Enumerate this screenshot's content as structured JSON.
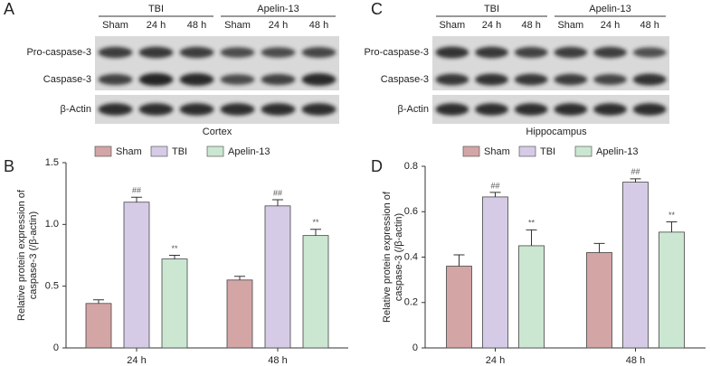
{
  "blots": [
    {
      "panel_label": "A",
      "groups": [
        "TBI",
        "Apelin-13"
      ],
      "lanes": [
        "Sham",
        "24 h",
        "48 h",
        "Sham",
        "24 h",
        "48 h"
      ],
      "rows": [
        "Pro-caspase-3",
        "Caspase-3",
        "β-Actin"
      ],
      "caption": "Cortex"
    },
    {
      "panel_label": "C",
      "groups": [
        "TBI",
        "Apelin-13"
      ],
      "lanes": [
        "Sham",
        "24 h",
        "48 h",
        "Sham",
        "24 h",
        "48 h"
      ],
      "rows": [
        "Pro-caspase-3",
        "Caspase-3",
        "β-Actin"
      ],
      "caption": "Hippocampus"
    }
  ],
  "chart_data": [
    {
      "type": "bar",
      "panel_label": "B",
      "ylabel": [
        "Relative protein expression of",
        "caspase-3 (/β-actin)"
      ],
      "categories": [
        "24 h",
        "48 h"
      ],
      "series": [
        {
          "name": "Sham",
          "color": "#d4a5a5",
          "values": [
            0.36,
            0.55
          ],
          "errors": [
            0.03,
            0.03
          ]
        },
        {
          "name": "TBI",
          "color": "#d6cbe7",
          "values": [
            1.18,
            1.15
          ],
          "errors": [
            0.04,
            0.05
          ],
          "annotations": [
            "##",
            "##"
          ]
        },
        {
          "name": "Apelin-13",
          "color": "#cbe7d1",
          "values": [
            0.72,
            0.91
          ],
          "errors": [
            0.03,
            0.05
          ],
          "annotations": [
            "**",
            "**"
          ]
        }
      ],
      "ylim": [
        0,
        1.5
      ],
      "yticks": [
        0,
        0.5,
        {
          "value": 1,
          "label": "1.0"
        },
        1.5
      ],
      "grid": false
    },
    {
      "type": "bar",
      "panel_label": "D",
      "ylabel": [
        "Relative protein expression of",
        "caspase-3 (/β-actin)"
      ],
      "categories": [
        "24 h",
        "48 h"
      ],
      "series": [
        {
          "name": "Sham",
          "color": "#d4a5a5",
          "values": [
            0.36,
            0.42
          ],
          "errors": [
            0.05,
            0.04
          ]
        },
        {
          "name": "TBI",
          "color": "#d6cbe7",
          "values": [
            0.665,
            0.73
          ],
          "errors": [
            0.02,
            0.015
          ],
          "annotations": [
            "##",
            "##"
          ]
        },
        {
          "name": "Apelin-13",
          "color": "#cbe7d1",
          "values": [
            0.45,
            0.51
          ],
          "errors": [
            0.07,
            0.045
          ],
          "annotations": [
            "**",
            "**"
          ]
        }
      ],
      "ylim": [
        0,
        0.8
      ],
      "yticks": [
        0,
        0.2,
        0.4,
        0.6,
        0.8
      ],
      "grid": false
    }
  ]
}
